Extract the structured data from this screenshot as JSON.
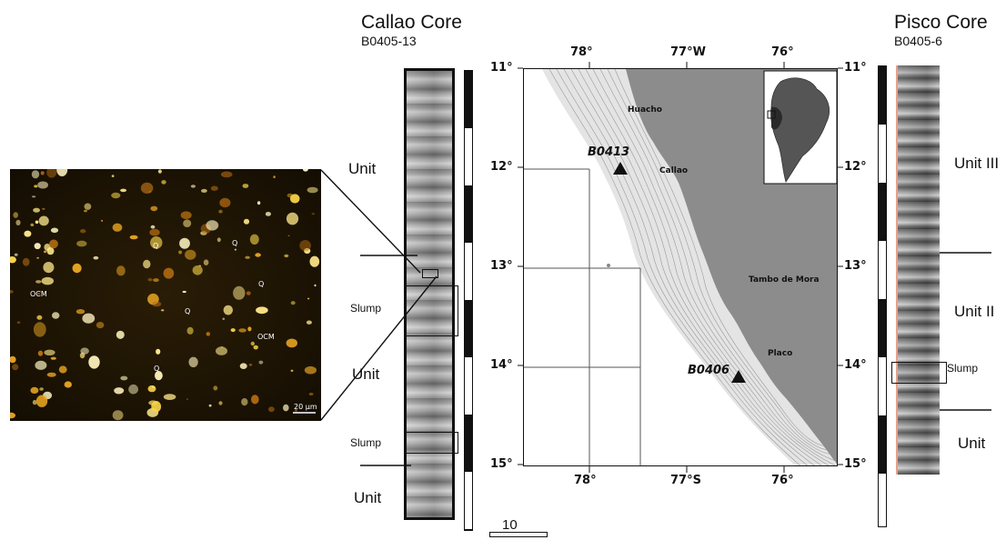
{
  "micrograph": {
    "labels": {
      "ocm": "OCM",
      "q": "Q"
    },
    "scale_bar": "20 µm"
  },
  "callao": {
    "title": "Callao Core",
    "id": "B0405-13",
    "units": [
      "Unit",
      "Unit",
      "Unit"
    ],
    "slumps": [
      "Slump",
      "Slump"
    ]
  },
  "pisco": {
    "title": "Pisco Core",
    "id": "B0405-6",
    "units": [
      "Unit III",
      "Unit II",
      "Unit"
    ],
    "slump": "Slump"
  },
  "map": {
    "top_ticks": [
      "78°",
      "77°W",
      "76°"
    ],
    "bottom_ticks": [
      "78°",
      "77°S",
      "76°"
    ],
    "left_ticks": [
      "11°",
      "12°",
      "13°",
      "14°",
      "15°"
    ],
    "right_ticks": [
      "11°",
      "12°",
      "13°",
      "14°",
      "15°"
    ],
    "places": [
      "Huacho",
      "Callao",
      "Tambo de Mora",
      "Placo"
    ],
    "stations": [
      "B0413",
      "B0406"
    ],
    "colors": {
      "land": "#8c8c8c",
      "ocean": "#ffffff",
      "shelf": "#e2e2e2"
    }
  },
  "scale_label": "10"
}
